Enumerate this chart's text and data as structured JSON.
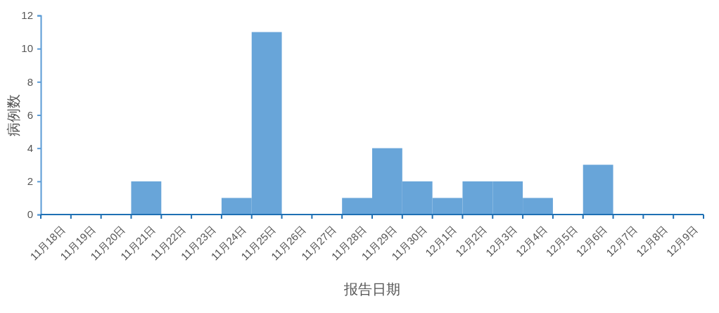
{
  "chart_data": {
    "type": "bar",
    "xlabel": "报告日期",
    "ylabel": "病例数",
    "categories": [
      "11月18日",
      "11月19日",
      "11月20日",
      "11月21日",
      "11月22日",
      "11月23日",
      "11月24日",
      "11月25日",
      "11月26日",
      "11月27日",
      "11月28日",
      "11月29日",
      "11月30日",
      "12月1日",
      "12月2日",
      "12月3日",
      "12月4日",
      "12月5日",
      "12月6日",
      "12月7日",
      "12月8日",
      "12月9日"
    ],
    "values": [
      0,
      0,
      0,
      2,
      0,
      0,
      1,
      11,
      0,
      0,
      1,
      4,
      2,
      1,
      2,
      2,
      1,
      0,
      3,
      0,
      0,
      0
    ],
    "color": "#68a5d9",
    "ylim": [
      0,
      12
    ],
    "yticks": [
      0,
      2,
      4,
      6,
      8,
      10,
      12
    ]
  }
}
